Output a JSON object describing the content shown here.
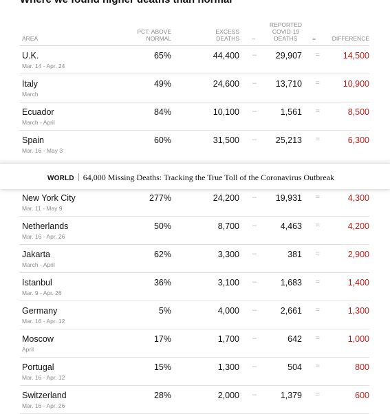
{
  "title": "Where we found higher deaths than normal",
  "header": {
    "area": "Area",
    "pct": [
      "Pct. above",
      "normal"
    ],
    "excess": [
      "Excess",
      "deaths"
    ],
    "minus": "–",
    "reported": [
      "Reported",
      "Covid-19",
      "deaths"
    ],
    "eq": "=",
    "difference": "Difference"
  },
  "rows_top": [
    {
      "area": "U.K.",
      "dates": "Mar. 14 - Apr. 24",
      "pct": "65%",
      "excess": "44,400",
      "reported": "29,907",
      "difference": "14,500"
    },
    {
      "area": "Italy",
      "dates": "March",
      "pct": "49%",
      "excess": "24,600",
      "reported": "13,710",
      "difference": "10,900"
    },
    {
      "area": "Ecuador",
      "dates": "March - April",
      "pct": "84%",
      "excess": "10,100",
      "reported": "1,561",
      "difference": "8,500"
    },
    {
      "area": "Spain",
      "dates": "Mar. 16 - May 3",
      "pct": "60%",
      "excess": "31,500",
      "reported": "25,213",
      "difference": "6,300"
    }
  ],
  "banner": {
    "kicker": "WORLD",
    "headline": "64,000 Missing Deaths: Tracking the True Toll of the Coronavirus Outbreak"
  },
  "rows_bottom": [
    {
      "area": "New York City",
      "dates": "Mar. 11 - May 9",
      "pct": "277%",
      "excess": "24,200",
      "reported": "19,931",
      "difference": "4,300"
    },
    {
      "area": "Netherlands",
      "dates": "Mar. 16 - Apr. 26",
      "pct": "50%",
      "excess": "8,700",
      "reported": "4,463",
      "difference": "4,200"
    },
    {
      "area": "Jakarta",
      "dates": "March - April",
      "pct": "62%",
      "excess": "3,300",
      "reported": "381",
      "difference": "2,900"
    },
    {
      "area": "Istanbul",
      "dates": "Mar. 9 - Apr. 26",
      "pct": "36%",
      "excess": "3,100",
      "reported": "1,683",
      "difference": "1,400"
    },
    {
      "area": "Germany",
      "dates": "Mar. 16 - Apr. 12",
      "pct": "5%",
      "excess": "4,000",
      "reported": "2,661",
      "difference": "1,300"
    },
    {
      "area": "Moscow",
      "dates": "April",
      "pct": "17%",
      "excess": "1,700",
      "reported": "642",
      "difference": "1,000"
    },
    {
      "area": "Portugal",
      "dates": "Mar. 16 - Apr. 12",
      "pct": "15%",
      "excess": "1,300",
      "reported": "504",
      "difference": "800"
    },
    {
      "area": "Switzerland",
      "dates": "Mar. 16 - Apr. 26",
      "pct": "28%",
      "excess": "2,000",
      "reported": "1,379",
      "difference": "600"
    }
  ],
  "colors": {
    "difference": "#c11b17",
    "muted": "#8c8c8c"
  }
}
